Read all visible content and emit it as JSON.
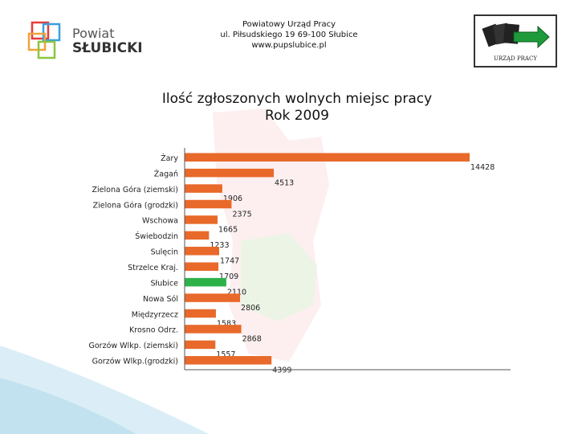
{
  "header": {
    "logo_line1": "Powiat",
    "logo_line2": "SŁUBICKI",
    "office_name": "Powiatowy Urząd Pracy",
    "address": "ul. Piłsudskiego 19 69-100 Słubice",
    "website": "www.pupslubice.pl",
    "right_logo_caption": "URZĄD PRACY"
  },
  "chart_data": {
    "type": "bar",
    "orientation": "horizontal",
    "title": "Ilość zgłoszonych wolnych miejsc pracy",
    "subtitle": "Rok 2009",
    "categories": [
      "Żary",
      "Żagań",
      "Zielona Góra (ziemski)",
      "Zielona Góra (grodzki)",
      "Wschowa",
      "Świebodzin",
      "Sulęcin",
      "Strzelce Kraj.",
      "Słubice",
      "Nowa Sól",
      "Międzyrzecz",
      "Krosno Odrz.",
      "Gorzów Wlkp. (ziemski)",
      "Gorzów Wlkp.(grodzki)"
    ],
    "values": [
      14428,
      4513,
      1906,
      2375,
      1665,
      1233,
      1747,
      1709,
      2110,
      2806,
      1583,
      2868,
      1557,
      4399
    ],
    "value_labels": [
      "14428",
      "4513",
      "1906",
      "2375",
      "1665",
      "1233",
      "1747",
      "1709",
      "2110",
      "2806",
      "1583",
      "2868",
      "1557",
      "4399"
    ],
    "xlim": [
      0,
      16500
    ],
    "highlight": "Słubice",
    "colors": {
      "default": "#e8692a",
      "highlight": "#2db24a",
      "axis": "#555555"
    },
    "grid": false,
    "legend": "none"
  }
}
